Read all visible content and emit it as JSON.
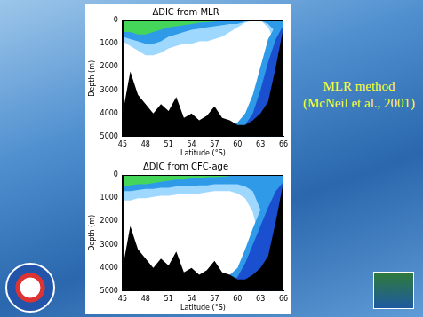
{
  "chart_data": [
    {
      "type": "area",
      "title": "ΔDIC from MLR",
      "x_label": "Latitude (°S)",
      "y_label": "Depth (m)",
      "x": [
        45,
        46,
        47,
        48,
        49,
        50,
        51,
        52,
        53,
        54,
        55,
        56,
        57,
        58,
        59,
        60,
        61,
        62,
        63,
        64,
        65,
        66
      ],
      "xlim": [
        45,
        66
      ],
      "xticks": [
        45,
        48,
        51,
        54,
        57,
        60,
        63,
        66
      ],
      "ylim": [
        0,
        5000
      ],
      "yticks": [
        0,
        1000,
        2000,
        3000,
        4000,
        5000
      ],
      "grid": false,
      "surface_layers": [
        {
          "color": "#9fd8ff",
          "values": [
            900,
            1100,
            1300,
            1500,
            1500,
            1400,
            1200,
            1100,
            1000,
            1000,
            900,
            900,
            800,
            700,
            500,
            300,
            100,
            0,
            0,
            300,
            1000,
            1500
          ]
        },
        {
          "color": "#2f9be8",
          "values": [
            700,
            800,
            900,
            1000,
            1000,
            900,
            700,
            600,
            500,
            400,
            350,
            300,
            250,
            200,
            150,
            150,
            50,
            0,
            0,
            150,
            500,
            800
          ]
        },
        {
          "color": "#44d65a",
          "values": [
            500,
            500,
            600,
            600,
            500,
            400,
            300,
            250,
            200,
            150,
            100,
            80,
            50,
            30,
            0,
            0,
            0,
            0,
            0,
            0,
            0,
            0
          ]
        }
      ],
      "bottom_layers": [
        {
          "color": "#2f9be8",
          "values": [
            null,
            null,
            null,
            null,
            null,
            null,
            null,
            null,
            null,
            null,
            null,
            null,
            null,
            null,
            4600,
            4400,
            4000,
            3200,
            2000,
            800,
            200,
            0
          ]
        },
        {
          "color": "#1a4fd0",
          "values": [
            null,
            null,
            null,
            null,
            null,
            null,
            null,
            null,
            null,
            null,
            null,
            null,
            null,
            null,
            null,
            null,
            4500,
            4000,
            3000,
            1800,
            800,
            200
          ]
        }
      ],
      "seafloor": {
        "color": "#000000",
        "values": [
          4000,
          2200,
          3200,
          3600,
          4000,
          3600,
          3900,
          3300,
          4200,
          4000,
          4300,
          4100,
          3700,
          4200,
          4300,
          4500,
          4500,
          4300,
          4000,
          3500,
          2000,
          300
        ]
      }
    },
    {
      "type": "area",
      "title": "ΔDIC from CFC-age",
      "x_label": "Latitude (°S)",
      "y_label": "Depth (m)",
      "x": [
        45,
        46,
        47,
        48,
        49,
        50,
        51,
        52,
        53,
        54,
        55,
        56,
        57,
        58,
        59,
        60,
        61,
        62,
        63,
        64,
        65,
        66
      ],
      "xlim": [
        45,
        66
      ],
      "xticks": [
        45,
        48,
        51,
        54,
        57,
        60,
        63,
        66
      ],
      "ylim": [
        0,
        5000
      ],
      "yticks": [
        0,
        1000,
        2000,
        3000,
        4000,
        5000
      ],
      "grid": false,
      "surface_layers": [
        {
          "color": "#9fd8ff",
          "values": [
            1100,
            1100,
            1000,
            1000,
            950,
            900,
            900,
            850,
            800,
            800,
            800,
            750,
            700,
            700,
            700,
            800,
            1000,
            1600,
            3000,
            4000,
            5000,
            5000
          ]
        },
        {
          "color": "#2f9be8",
          "values": [
            700,
            700,
            650,
            600,
            600,
            550,
            550,
            500,
            500,
            500,
            450,
            450,
            400,
            400,
            400,
            400,
            500,
            700,
            1500,
            3000,
            5000,
            5000
          ]
        },
        {
          "color": "#44d65a",
          "values": [
            500,
            450,
            400,
            400,
            350,
            300,
            250,
            200,
            200,
            150,
            150,
            100,
            100,
            80,
            50,
            0,
            0,
            0,
            0,
            0,
            0,
            0
          ]
        }
      ],
      "bottom_layers": [
        {
          "color": "#2f9be8",
          "values": [
            null,
            null,
            null,
            null,
            null,
            null,
            null,
            null,
            null,
            null,
            null,
            null,
            null,
            4500,
            4300,
            4000,
            3200,
            2300,
            1500,
            800,
            300,
            0
          ]
        },
        {
          "color": "#1a4fd0",
          "values": [
            null,
            null,
            null,
            null,
            null,
            null,
            null,
            null,
            null,
            null,
            null,
            null,
            null,
            null,
            4600,
            4400,
            3800,
            3000,
            2200,
            1400,
            700,
            300
          ]
        }
      ],
      "seafloor": {
        "color": "#000000",
        "values": [
          4000,
          2200,
          3200,
          3600,
          4000,
          3600,
          3900,
          3300,
          4200,
          4000,
          4300,
          4100,
          3700,
          4200,
          4300,
          4500,
          4500,
          4300,
          4000,
          3500,
          2000,
          300
        ]
      }
    }
  ],
  "side_text": [
    "MLR method",
    "(McNeil et al., 2001)"
  ]
}
